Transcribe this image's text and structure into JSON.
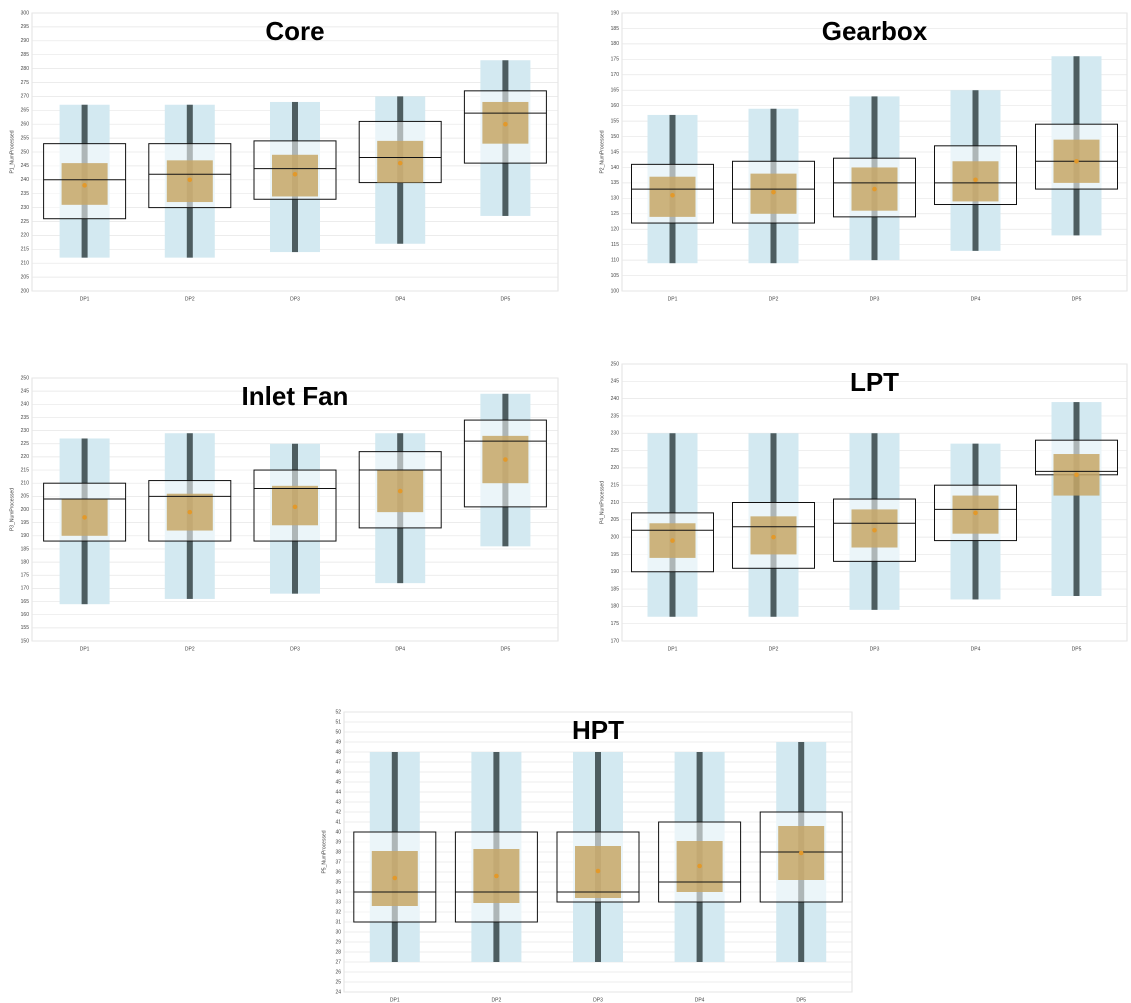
{
  "chart_data": [
    {
      "type": "box",
      "title": "Core",
      "y_label": "P1_NumProcessed",
      "categories": [
        "DP1",
        "DP2",
        "DP3",
        "DP4",
        "DP5"
      ],
      "min": [
        212,
        212,
        214,
        217,
        227
      ],
      "q1": [
        226,
        230,
        233,
        239,
        246
      ],
      "median": [
        240,
        242,
        244,
        248,
        264
      ],
      "q3": [
        253,
        253,
        254,
        261,
        272
      ],
      "max": [
        267,
        267,
        268,
        270,
        283
      ],
      "mean": [
        238,
        240,
        242,
        246,
        260
      ],
      "ci_low": [
        231,
        232,
        234,
        239,
        253
      ],
      "ci_high": [
        246,
        247,
        249,
        254,
        268
      ],
      "ylim": [
        200,
        300
      ],
      "yticks": [
        200,
        205,
        210,
        215,
        220,
        225,
        230,
        235,
        240,
        245,
        250,
        255,
        260,
        265,
        270,
        275,
        280,
        285,
        290,
        295,
        300
      ],
      "grid": true,
      "band_color": "#d3e9f1",
      "whisker_color": "#4d5d60",
      "ci_color": "#c7a767",
      "mean_color": "#e3992a"
    },
    {
      "type": "box",
      "title": "Gearbox",
      "y_label": "P2_NumProcessed",
      "categories": [
        "DP1",
        "DP2",
        "DP3",
        "DP4",
        "DP5"
      ],
      "min": [
        109,
        109,
        110,
        113,
        118
      ],
      "q1": [
        122,
        122,
        124,
        128,
        133
      ],
      "median": [
        133,
        133,
        135,
        135,
        142
      ],
      "q3": [
        141,
        142,
        143,
        147,
        154
      ],
      "max": [
        157,
        159,
        163,
        165,
        176
      ],
      "mean": [
        131,
        132,
        133,
        136,
        142
      ],
      "ci_low": [
        124,
        125,
        126,
        129,
        135
      ],
      "ci_high": [
        137,
        138,
        140,
        142,
        149
      ],
      "ylim": [
        100,
        190
      ],
      "yticks": [
        100,
        105,
        110,
        115,
        120,
        125,
        130,
        135,
        140,
        145,
        150,
        155,
        160,
        165,
        170,
        175,
        180,
        185,
        190
      ],
      "grid": true,
      "band_color": "#d3e9f1",
      "whisker_color": "#4d5d60",
      "ci_color": "#c7a767",
      "mean_color": "#e3992a"
    },
    {
      "type": "box",
      "title": "Inlet Fan",
      "y_label": "P3_NumProcessed",
      "categories": [
        "DP1",
        "DP2",
        "DP3",
        "DP4",
        "DP5"
      ],
      "min": [
        164,
        166,
        168,
        172,
        186
      ],
      "q1": [
        188,
        188,
        188,
        193,
        201
      ],
      "median": [
        204,
        205,
        208,
        215,
        226
      ],
      "q3": [
        210,
        211,
        215,
        222,
        234
      ],
      "max": [
        227,
        229,
        225,
        229,
        244
      ],
      "mean": [
        197,
        199,
        201,
        207,
        219
      ],
      "ci_low": [
        190,
        192,
        194,
        199,
        210
      ],
      "ci_high": [
        204,
        206,
        209,
        215,
        228
      ],
      "ylim": [
        150,
        250
      ],
      "yticks": [
        150,
        155,
        160,
        165,
        170,
        175,
        180,
        185,
        190,
        195,
        200,
        205,
        210,
        215,
        220,
        225,
        230,
        235,
        240,
        245,
        250
      ],
      "grid": true,
      "band_color": "#d3e9f1",
      "whisker_color": "#4d5d60",
      "ci_color": "#c7a767",
      "mean_color": "#e3992a"
    },
    {
      "type": "box",
      "title": "LPT",
      "y_label": "P4_NumProcessed",
      "categories": [
        "DP1",
        "DP2",
        "DP3",
        "DP4",
        "DP5"
      ],
      "min": [
        177,
        177,
        179,
        182,
        183
      ],
      "q1": [
        190,
        191,
        193,
        199,
        218
      ],
      "median": [
        202,
        203,
        204,
        208,
        219
      ],
      "q3": [
        207,
        210,
        211,
        215,
        228
      ],
      "max": [
        230,
        230,
        230,
        227,
        239
      ],
      "mean": [
        199,
        200,
        202,
        207,
        218
      ],
      "ci_low": [
        194,
        195,
        197,
        201,
        212
      ],
      "ci_high": [
        204,
        206,
        208,
        212,
        224
      ],
      "ylim": [
        170,
        250
      ],
      "yticks": [
        170,
        175,
        180,
        185,
        190,
        195,
        200,
        205,
        210,
        215,
        220,
        225,
        230,
        235,
        240,
        245,
        250
      ],
      "grid": true,
      "band_color": "#d3e9f1",
      "whisker_color": "#4d5d60",
      "ci_color": "#c7a767",
      "mean_color": "#e3992a"
    },
    {
      "type": "box",
      "title": "HPT",
      "y_label": "P5_NumProcessed",
      "categories": [
        "DP1",
        "DP2",
        "DP3",
        "DP4",
        "DP5"
      ],
      "min": [
        27,
        27,
        27,
        27,
        27
      ],
      "q1": [
        31,
        31,
        33,
        33,
        33
      ],
      "median": [
        34,
        34,
        34,
        35,
        38
      ],
      "q3": [
        40,
        40,
        40,
        41,
        42
      ],
      "max": [
        48,
        48,
        48,
        48,
        49
      ],
      "mean": [
        35.4,
        35.6,
        36.1,
        36.6,
        37.9
      ],
      "ci_low": [
        32.6,
        32.9,
        33.4,
        34,
        35.2
      ],
      "ci_high": [
        38.1,
        38.3,
        38.6,
        39.1,
        40.6
      ],
      "ylim": [
        24,
        52
      ],
      "yticks": [
        24,
        25,
        26,
        27,
        28,
        29,
        30,
        31,
        32,
        33,
        34,
        35,
        36,
        37,
        38,
        39,
        40,
        41,
        42,
        43,
        44,
        45,
        46,
        47,
        48,
        49,
        50,
        51,
        52
      ],
      "grid": true,
      "band_color": "#d3e9f1",
      "whisker_color": "#4d5d60",
      "ci_color": "#c7a767",
      "mean_color": "#e3992a"
    }
  ]
}
